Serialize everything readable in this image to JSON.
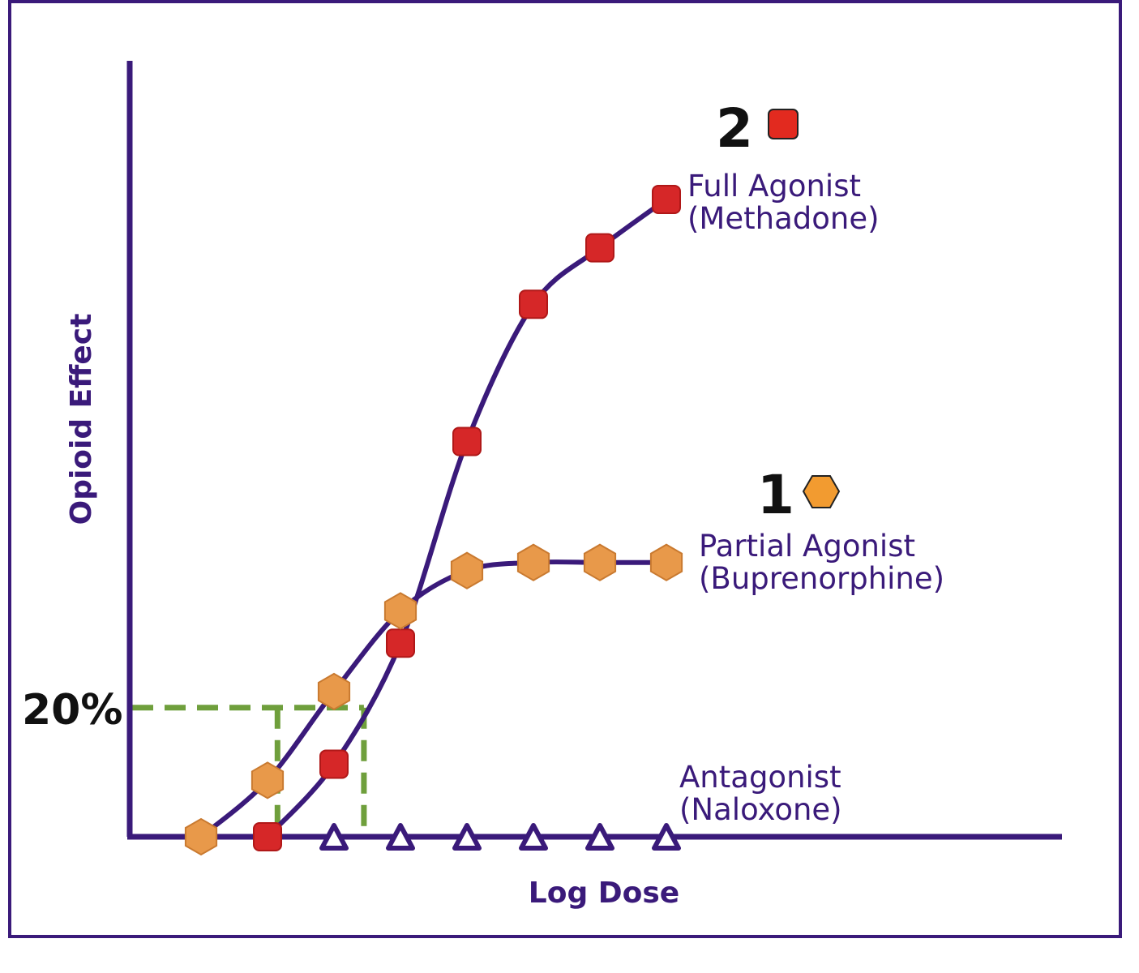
{
  "chart_data": {
    "type": "line",
    "title": "",
    "xlabel": "Log Dose",
    "ylabel": "Opioid Effect",
    "grid": false,
    "legend": "inline labels at the right end of each curve",
    "x": [
      1,
      2,
      3,
      4,
      5,
      6,
      7,
      8
    ],
    "series": [
      {
        "key": "full",
        "name": "Full Agonist",
        "name_line2": "(Methadone)",
        "badge_number": "2",
        "marker": "square",
        "marker_color": "#d62728",
        "x": [
          2,
          3,
          4,
          5,
          6,
          7,
          8
        ],
        "values": [
          0,
          9,
          24,
          49,
          66,
          73,
          79
        ]
      },
      {
        "key": "partial",
        "name": "Partial Agonist",
        "name_line2": "(Buprenorphine)",
        "badge_number": "1",
        "marker": "hexagon",
        "marker_color": "#e8994a",
        "x": [
          1,
          2,
          3,
          4,
          5,
          6,
          7,
          8
        ],
        "values": [
          0,
          7,
          18,
          28,
          33,
          34,
          34,
          34
        ]
      },
      {
        "key": "antagonist",
        "name": "Antagonist",
        "name_line2": "(Naloxone)",
        "marker": "triangle",
        "marker_color": "#3a1a7a",
        "x": [
          3,
          4,
          5,
          6,
          7,
          8
        ],
        "values": [
          0,
          0,
          0,
          0,
          0,
          0
        ]
      }
    ],
    "annotation": {
      "label": "20%",
      "y": 16,
      "x_partial": 2.15,
      "x_full": 3.45,
      "color": "#6f9f3c"
    },
    "axis_color": "#3a1a7a",
    "frame_color": "#3a1a7a"
  }
}
